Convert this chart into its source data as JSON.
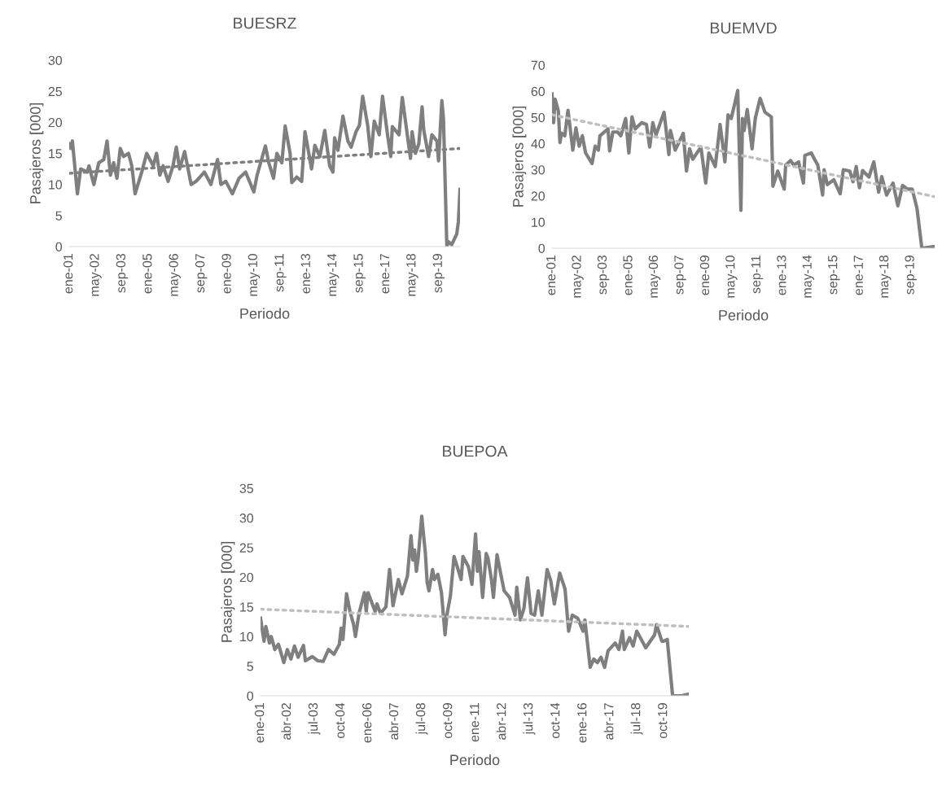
{
  "chart_data": [
    {
      "type": "line",
      "title": "BUESRZ",
      "xlabel": "Periodo",
      "ylabel": "Pasajeros [000]",
      "ylim": [
        0,
        30
      ],
      "yticks": [
        0,
        5,
        10,
        15,
        20,
        25,
        30
      ],
      "xlim": [
        "2001-01",
        "2020-10"
      ],
      "xticks": [
        {
          "value": "2001-01",
          "label": "ene-01"
        },
        {
          "value": "2002-05",
          "label": "may-02"
        },
        {
          "value": "2003-09",
          "label": "sep-03"
        },
        {
          "value": "2005-01",
          "label": "ene-05"
        },
        {
          "value": "2006-05",
          "label": "may-06"
        },
        {
          "value": "2007-09",
          "label": "sep-07"
        },
        {
          "value": "2009-01",
          "label": "ene-09"
        },
        {
          "value": "2010-05",
          "label": "may-10"
        },
        {
          "value": "2011-09",
          "label": "sep-11"
        },
        {
          "value": "2013-01",
          "label": "ene-13"
        },
        {
          "value": "2014-05",
          "label": "may-14"
        },
        {
          "value": "2015-09",
          "label": "sep-15"
        },
        {
          "value": "2017-01",
          "label": "ene-17"
        },
        {
          "value": "2018-05",
          "label": "may-18"
        },
        {
          "value": "2019-09",
          "label": "sep-19"
        }
      ],
      "series": [
        {
          "color": "#7f7f7f",
          "line_style": "solid",
          "x": [
            "2001-01",
            "2001-02",
            "2001-03",
            "2001-06",
            "2001-08",
            "2001-12",
            "2002-01",
            "2002-04",
            "2002-07",
            "2002-10",
            "2002-12",
            "2003-02",
            "2003-04",
            "2003-06",
            "2003-08",
            "2003-10",
            "2004-01",
            "2004-03",
            "2004-05",
            "2004-09",
            "2004-12",
            "2005-04",
            "2005-06",
            "2005-08",
            "2005-10",
            "2006-01",
            "2006-04",
            "2006-06",
            "2006-08",
            "2006-11",
            "2007-03",
            "2007-06",
            "2007-11",
            "2008-03",
            "2008-07",
            "2008-09",
            "2008-12",
            "2009-04",
            "2009-08",
            "2009-12",
            "2010-05",
            "2010-07",
            "2010-12",
            "2011-02",
            "2011-05",
            "2011-07",
            "2011-10",
            "2011-12",
            "2012-03",
            "2012-04",
            "2012-07",
            "2012-10",
            "2012-12",
            "2013-04",
            "2013-06",
            "2013-09",
            "2013-12",
            "2014-03",
            "2014-05",
            "2014-06",
            "2014-08",
            "2014-11",
            "2015-02",
            "2015-04",
            "2015-07",
            "2015-09",
            "2015-11",
            "2016-02",
            "2016-04",
            "2016-06",
            "2016-09",
            "2016-11",
            "2017-02",
            "2017-04",
            "2017-05",
            "2017-09",
            "2017-11",
            "2018-01",
            "2018-04",
            "2018-05",
            "2018-07",
            "2018-09",
            "2018-11",
            "2018-12",
            "2019-03",
            "2019-05",
            "2019-08",
            "2019-09",
            "2019-11",
            "2019-12",
            "2020-02",
            "2020-03",
            "2020-05",
            "2020-08",
            "2020-09",
            "2020-10"
          ],
          "values": [
            16.5,
            15.8,
            17.0,
            8.5,
            12.5,
            12.0,
            13,
            10,
            13.5,
            14,
            17,
            11.5,
            13.5,
            11,
            15.8,
            14.5,
            15,
            13,
            8.5,
            12,
            15,
            13,
            15,
            11.5,
            13,
            10.5,
            13,
            16,
            12.5,
            15.3,
            10,
            10.5,
            12,
            10,
            14,
            10,
            10.5,
            8.5,
            11,
            12,
            8.8,
            11.5,
            16.2,
            13.5,
            11,
            15,
            13.5,
            19.4,
            15,
            10.3,
            11.2,
            10.5,
            18.5,
            12.5,
            16.3,
            14.5,
            18.7,
            13,
            12,
            17.5,
            15.5,
            21,
            17,
            16,
            18.5,
            19.5,
            24.2,
            19.5,
            14.5,
            20.2,
            18,
            24.2,
            18,
            14.5,
            19.3,
            18,
            24,
            20,
            14.2,
            18.5,
            15,
            16.5,
            22.5,
            18.8,
            14.5,
            18,
            17,
            13.8,
            23.5,
            20.5,
            0,
            0.8,
            0.3,
            2,
            4,
            9.2
          ]
        },
        {
          "color": "#7f7f7f",
          "line_style": "dotted",
          "x": [
            "2001-01",
            "2020-10"
          ],
          "values": [
            11.8,
            15.8
          ]
        }
      ]
    },
    {
      "type": "line",
      "title": "BUEMVD",
      "xlabel": "Periodo",
      "ylabel": "Pasajeros [000]",
      "ylim": [
        0,
        70
      ],
      "yticks": [
        0,
        10,
        20,
        30,
        40,
        50,
        60,
        70
      ],
      "xlim": [
        "2001-01",
        "2020-12"
      ],
      "xticks": [
        {
          "value": "2001-01",
          "label": "ene-01"
        },
        {
          "value": "2002-05",
          "label": "may-02"
        },
        {
          "value": "2003-09",
          "label": "sep-03"
        },
        {
          "value": "2005-01",
          "label": "ene-05"
        },
        {
          "value": "2006-05",
          "label": "may-06"
        },
        {
          "value": "2007-09",
          "label": "sep-07"
        },
        {
          "value": "2009-01",
          "label": "ene-09"
        },
        {
          "value": "2010-05",
          "label": "may-10"
        },
        {
          "value": "2011-09",
          "label": "sep-11"
        },
        {
          "value": "2013-01",
          "label": "ene-13"
        },
        {
          "value": "2014-05",
          "label": "may-14"
        },
        {
          "value": "2015-09",
          "label": "sep-15"
        },
        {
          "value": "2017-01",
          "label": "ene-17"
        },
        {
          "value": "2018-05",
          "label": "may-18"
        },
        {
          "value": "2019-09",
          "label": "sep-19"
        }
      ],
      "series": [
        {
          "color": "#7f7f7f",
          "line_style": "solid",
          "x": [
            "2001-01",
            "2001-02",
            "2001-03",
            "2001-05",
            "2001-06",
            "2001-07",
            "2001-09",
            "2001-11",
            "2002-02",
            "2002-04",
            "2002-06",
            "2002-08",
            "2002-10",
            "2003-02",
            "2003-04",
            "2003-06",
            "2003-07",
            "2003-12",
            "2004-01",
            "2004-03",
            "2004-06",
            "2004-08",
            "2004-11",
            "2005-01",
            "2005-03",
            "2005-05",
            "2005-09",
            "2005-12",
            "2006-02",
            "2006-04",
            "2006-06",
            "2006-11",
            "2007-02",
            "2007-03",
            "2007-06",
            "2007-11",
            "2008-01",
            "2008-03",
            "2008-05",
            "2008-10",
            "2009-01",
            "2009-03",
            "2009-07",
            "2009-10",
            "2010-01",
            "2010-03",
            "2010-05",
            "2010-07",
            "2010-09",
            "2010-11",
            "2010-12",
            "2011-01",
            "2011-03",
            "2011-06",
            "2011-08",
            "2011-11",
            "2012-02",
            "2012-06",
            "2012-07",
            "2012-10",
            "2013-02",
            "2013-03",
            "2013-06",
            "2013-08",
            "2013-11",
            "2014-02",
            "2014-03",
            "2014-07",
            "2014-09",
            "2014-11",
            "2015-02",
            "2015-03",
            "2015-05",
            "2015-09",
            "2016-01",
            "2016-03",
            "2016-07",
            "2016-09",
            "2016-11",
            "2017-01",
            "2017-03",
            "2017-07",
            "2017-10",
            "2018-01",
            "2018-03",
            "2018-06",
            "2018-10",
            "2019-01",
            "2019-04",
            "2019-07",
            "2019-10",
            "2020-01",
            "2020-04",
            "2020-12"
          ],
          "values": [
            59,
            48,
            57,
            52.5,
            40.4,
            44,
            43,
            52.7,
            37.5,
            46,
            39,
            43,
            36.4,
            32.4,
            39,
            37.5,
            43,
            45.6,
            37.2,
            44.4,
            44.4,
            43,
            49.6,
            36.4,
            50.2,
            45.6,
            48,
            47.3,
            38.7,
            48,
            43.3,
            52,
            35.8,
            45,
            37.5,
            43.9,
            29.5,
            38,
            34,
            38.7,
            24.9,
            36.4,
            31.2,
            47.3,
            33,
            51,
            49.6,
            54.8,
            60.3,
            14.5,
            49.6,
            45,
            53,
            38,
            49.6,
            57.3,
            52,
            50.2,
            23.7,
            29.5,
            22.6,
            31.8,
            33.5,
            31.8,
            33,
            24.9,
            35.5,
            36.4,
            34,
            31.8,
            20.3,
            30,
            24.3,
            26.2,
            20.8,
            30,
            29.5,
            25.4,
            31.2,
            23.1,
            29.7,
            27.2,
            33,
            21.4,
            27.4,
            20.3,
            24.9,
            16.2,
            24,
            22.6,
            22.6,
            15.1,
            0,
            0.7
          ]
        },
        {
          "color": "#bfbfbf",
          "line_style": "dotted",
          "x": [
            "2001-01",
            "2020-12"
          ],
          "values": [
            51,
            19.7
          ]
        }
      ]
    },
    {
      "type": "line",
      "title": "BUEPOA",
      "xlabel": "Periodo",
      "ylabel": "Pasajeros [000]",
      "ylim": [
        0,
        35
      ],
      "yticks": [
        0,
        5,
        10,
        15,
        20,
        25,
        30,
        35
      ],
      "xlim": [
        "2001-01",
        "2020-12"
      ],
      "xticks": [
        {
          "value": "2001-01",
          "label": "ene-01"
        },
        {
          "value": "2002-04",
          "label": "abr-02"
        },
        {
          "value": "2003-07",
          "label": "jul-03"
        },
        {
          "value": "2004-10",
          "label": "oct-04"
        },
        {
          "value": "2006-01",
          "label": "ene-06"
        },
        {
          "value": "2007-04",
          "label": "abr-07"
        },
        {
          "value": "2008-07",
          "label": "jul-08"
        },
        {
          "value": "2009-10",
          "label": "oct-09"
        },
        {
          "value": "2011-01",
          "label": "ene-11"
        },
        {
          "value": "2012-04",
          "label": "abr-12"
        },
        {
          "value": "2013-07",
          "label": "jul-13"
        },
        {
          "value": "2014-10",
          "label": "oct-14"
        },
        {
          "value": "2016-01",
          "label": "ene-16"
        },
        {
          "value": "2017-04",
          "label": "abr-17"
        },
        {
          "value": "2018-07",
          "label": "jul-18"
        },
        {
          "value": "2019-10",
          "label": "oct-19"
        }
      ],
      "series": [
        {
          "color": "#7f7f7f",
          "line_style": "solid",
          "x": [
            "2001-01",
            "2001-03",
            "2001-04",
            "2001-06",
            "2001-07",
            "2001-09",
            "2001-11",
            "2002-02",
            "2002-04",
            "2002-06",
            "2002-08",
            "2002-10",
            "2003-01",
            "2003-02",
            "2003-06",
            "2003-09",
            "2003-12",
            "2004-03",
            "2004-06",
            "2004-09",
            "2004-10",
            "2004-11",
            "2005-01",
            "2005-03",
            "2005-05",
            "2005-06",
            "2005-08",
            "2005-11",
            "2005-12",
            "2006-01",
            "2006-05",
            "2006-06",
            "2006-08",
            "2006-11",
            "2007-01",
            "2007-03",
            "2007-06",
            "2007-08",
            "2007-11",
            "2008-01",
            "2008-02",
            "2008-03",
            "2008-04",
            "2008-05",
            "2008-07",
            "2008-09",
            "2008-10",
            "2008-11",
            "2009-01",
            "2009-02",
            "2009-04",
            "2009-06",
            "2009-08",
            "2009-09",
            "2009-11",
            "2010-01",
            "2010-03",
            "2010-05",
            "2010-06",
            "2010-09",
            "2010-11",
            "2011-01",
            "2011-02",
            "2011-03",
            "2011-05",
            "2011-07",
            "2011-08",
            "2011-10",
            "2011-11",
            "2012-01",
            "2012-03",
            "2012-05",
            "2012-08",
            "2012-11",
            "2012-12",
            "2013-02",
            "2013-04",
            "2013-06",
            "2013-08",
            "2013-10",
            "2013-12",
            "2014-02",
            "2014-05",
            "2014-07",
            "2014-09",
            "2014-10",
            "2014-12",
            "2015-03",
            "2015-05",
            "2015-07",
            "2015-10",
            "2016-01",
            "2016-02",
            "2016-05",
            "2016-07",
            "2016-09",
            "2016-11",
            "2017-01",
            "2017-03",
            "2017-07",
            "2017-09",
            "2017-11",
            "2017-12",
            "2018-03",
            "2018-05",
            "2018-07",
            "2018-12",
            "2019-05",
            "2019-06",
            "2019-09",
            "2019-10",
            "2019-12",
            "2020-03",
            "2020-08",
            "2020-12"
          ],
          "values": [
            13.1,
            9.2,
            11.7,
            8.9,
            10,
            7.8,
            8.7,
            5.6,
            7.8,
            6.2,
            8.4,
            6.5,
            8.5,
            5.9,
            6.6,
            5.9,
            5.8,
            7.8,
            7,
            8.7,
            11.4,
            9.5,
            17.2,
            14.2,
            12,
            10,
            13.9,
            17.4,
            14.2,
            17.4,
            14.2,
            15.5,
            13.9,
            15,
            21.3,
            15.2,
            19.6,
            17.2,
            20.2,
            27,
            22.9,
            24.6,
            21,
            23.2,
            30.3,
            24,
            19.1,
            17.7,
            21.3,
            19.6,
            20.5,
            17.4,
            10.3,
            13.6,
            16.9,
            23.5,
            21.6,
            19.6,
            23.5,
            21.8,
            18.8,
            27.3,
            21,
            24.3,
            16.6,
            24,
            23.2,
            19.4,
            16.6,
            23.8,
            20.7,
            17.7,
            16.6,
            13.6,
            18.3,
            12.8,
            14.7,
            19.9,
            13.9,
            13.6,
            17.7,
            13.6,
            21.3,
            19.4,
            15.5,
            17.2,
            20.7,
            18,
            10.9,
            13.6,
            13.1,
            10.9,
            12.8,
            4.8,
            6.2,
            5.6,
            6.5,
            4.8,
            7.6,
            8.9,
            7.8,
            10.9,
            7.8,
            9.8,
            8.4,
            10.9,
            8.1,
            10.3,
            12,
            9.2,
            9.2,
            9.5,
            0,
            0,
            0.3
          ]
        },
        {
          "color": "#bfbfbf",
          "line_style": "dotted",
          "x": [
            "2001-01",
            "2020-12"
          ],
          "values": [
            14.6,
            11.7
          ]
        }
      ]
    }
  ]
}
